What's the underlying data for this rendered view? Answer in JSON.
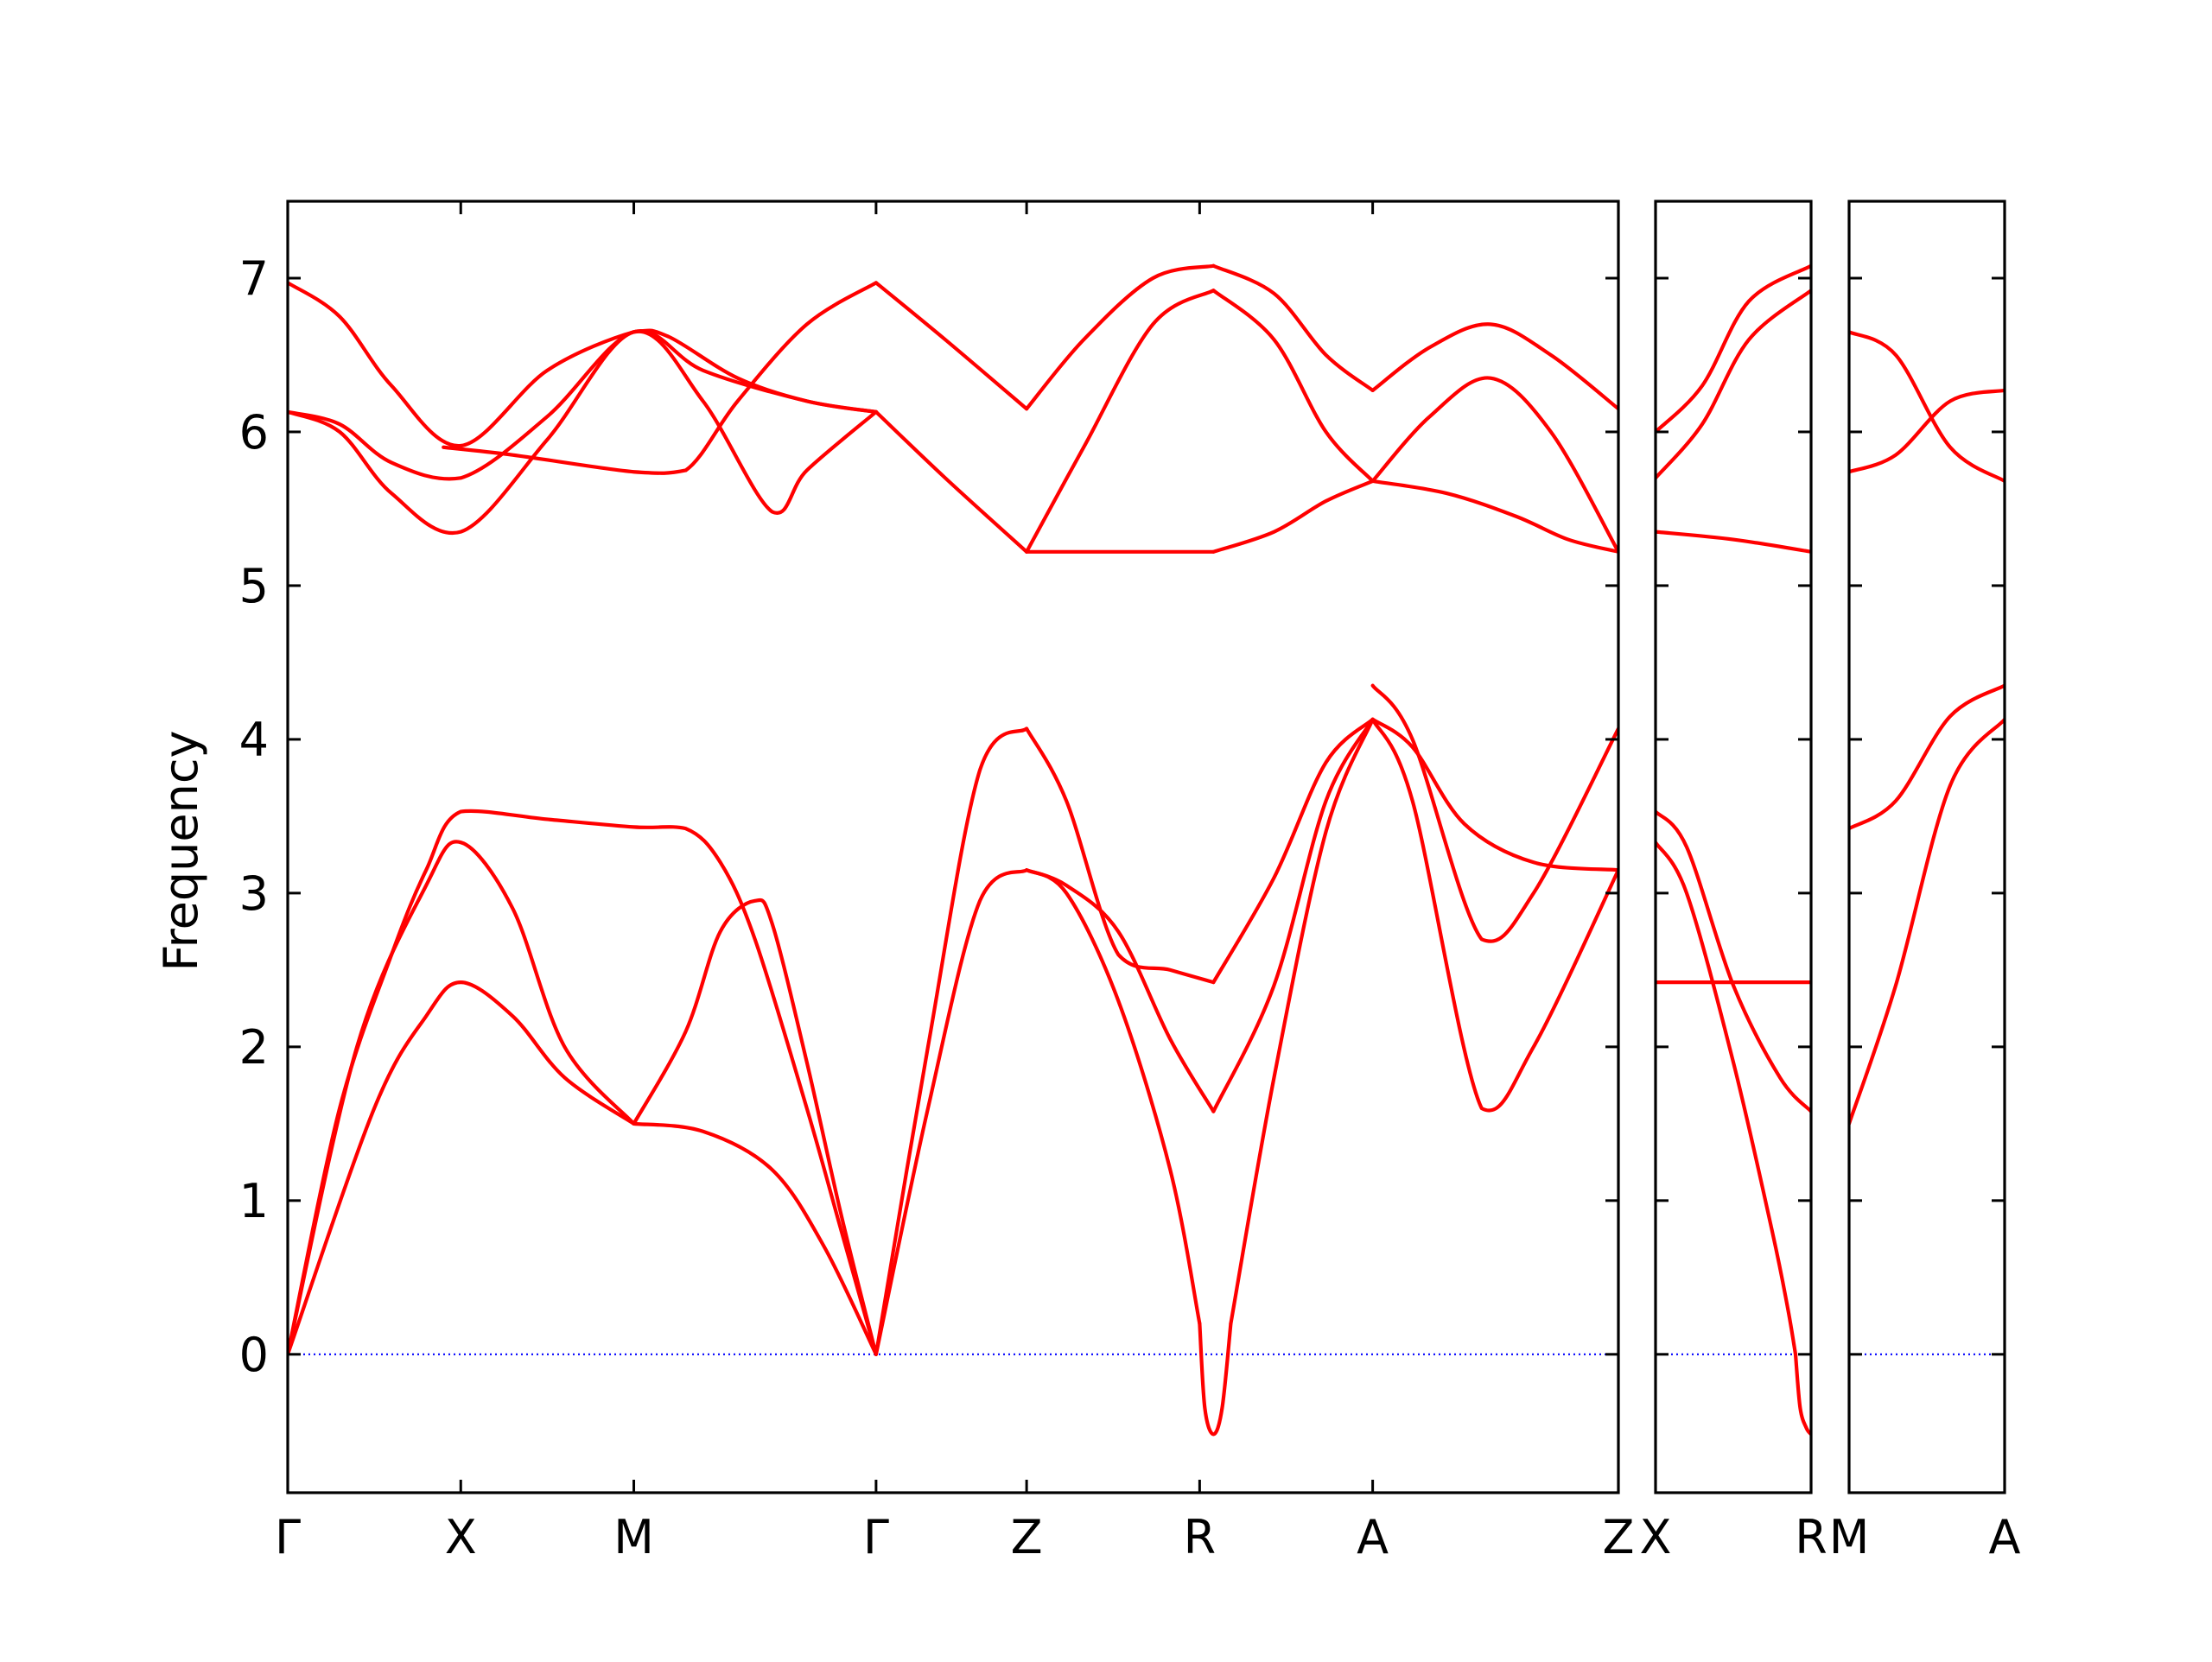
{
  "chart_data": {
    "type": "line",
    "title": "",
    "xlabel": "",
    "ylabel": "Frequency",
    "ylim": [
      -0.9,
      7.5
    ],
    "yticks": [
      0,
      1,
      2,
      3,
      4,
      5,
      6,
      7
    ],
    "grid": false,
    "legend": "none",
    "band_color": "#ff0000",
    "zero_line_color": "#0000ff",
    "panels": [
      {
        "name": "path-gamma-x-m-gamma-z-r-a-z",
        "segment_lengths": [
          1,
          1,
          1.4,
          0.87,
          1,
          1,
          1.42
        ],
        "labels": [
          "Γ",
          "X",
          "M",
          "Γ",
          "Z",
          "R",
          "A",
          "Z"
        ],
        "end_label": "",
        "series": [
          {
            "x": [
              0,
              0.5,
              0.8,
              1.0,
              1.3,
              1.6,
              2.0
            ],
            "y": [
              0,
              1.6,
              2.2,
              2.42,
              2.2,
              1.8,
              1.5
            ]
          },
          {
            "x": [
              2.0,
              2.4,
              2.8,
              3.1,
              3.4
            ],
            "y": [
              1.5,
              1.45,
              1.2,
              0.7,
              0
            ]
          },
          {
            "x": [
              0,
              0.4,
              0.8,
              1.0,
              1.3,
              1.6,
              2.0
            ],
            "y": [
              0,
              2.0,
              3.05,
              3.33,
              2.9,
              2.0,
              1.5
            ]
          },
          {
            "x": [
              2.0,
              2.3,
              2.5,
              2.7,
              2.8,
              3.0,
              3.2,
              3.4
            ],
            "y": [
              1.5,
              2.1,
              2.75,
              2.95,
              2.8,
              1.9,
              0.9,
              0
            ]
          },
          {
            "x": [
              0,
              0.3,
              0.6,
              0.8,
              1.0,
              1.5,
              2.0,
              2.3,
              2.5,
              2.7,
              3.0,
              3.2,
              3.4
            ],
            "y": [
              0,
              1.6,
              2.6,
              3.15,
              3.53,
              3.48,
              3.43,
              3.42,
              3.2,
              2.7,
              1.6,
              0.8,
              0
            ]
          },
          {
            "x": [
              3.4,
              3.7,
              4.0,
              4.27
            ],
            "y": [
              0,
              1.6,
              2.95,
              3.15
            ]
          },
          {
            "x": [
              3.4,
              3.7,
              4.0,
              4.27
            ],
            "y": [
              0,
              2.0,
              3.8,
              4.07
            ]
          },
          {
            "x": [
              4.27,
              4.5,
              4.8,
              5.1,
              5.27
            ],
            "y": [
              3.15,
              3.0,
              2.3,
              1.2,
              0.2
            ]
          },
          {
            "x": [
              5.27,
              5.3,
              5.35,
              5.4,
              5.45
            ],
            "y": [
              0.2,
              -0.35,
              -0.52,
              -0.35,
              0.2
            ]
          },
          {
            "x": [
              5.45,
              5.7,
              6.0,
              6.27
            ],
            "y": [
              0.2,
              1.8,
              3.4,
              4.13
            ]
          },
          {
            "x": [
              4.27,
              4.5,
              4.8,
              5.1,
              5.35
            ],
            "y": [
              3.15,
              3.05,
              2.75,
              2.05,
              1.58
            ]
          },
          {
            "x": [
              5.35,
              5.7,
              6.0,
              6.27
            ],
            "y": [
              1.58,
              2.4,
              3.6,
              4.13
            ]
          },
          {
            "x": [
              4.27,
              4.5,
              4.8,
              5.1,
              5.35
            ],
            "y": [
              4.07,
              3.6,
              2.6,
              2.5,
              2.42
            ]
          },
          {
            "x": [
              5.35,
              5.7,
              6.0,
              6.27
            ],
            "y": [
              2.42,
              3.1,
              3.85,
              4.13
            ]
          },
          {
            "x": [
              6.27,
              6.5,
              6.8,
              7.2,
              7.69
            ],
            "y": [
              4.13,
              3.95,
              3.45,
              3.2,
              3.15
            ]
          },
          {
            "x": [
              6.27,
              6.5,
              6.9,
              7.2,
              7.69
            ],
            "y": [
              4.13,
              3.6,
              1.6,
              2.0,
              3.15
            ]
          },
          {
            "x": [
              6.27,
              6.5,
              6.9,
              7.2,
              7.69
            ],
            "y": [
              4.35,
              4.0,
              2.7,
              3.0,
              4.07
            ]
          },
          {
            "x": [
              0,
              0.3,
              0.6,
              1.0,
              1.5,
              2.0,
              2.2,
              2.6,
              3.0,
              3.4
            ],
            "y": [
              6.97,
              6.75,
              6.3,
              5.91,
              6.4,
              6.65,
              6.62,
              6.35,
              6.2,
              6.13
            ]
          },
          {
            "x": [
              0,
              0.3,
              0.6,
              1.0,
              1.5,
              2.0,
              2.4,
              3.0,
              3.4
            ],
            "y": [
              6.13,
              6.05,
              5.8,
              5.7,
              6.1,
              6.65,
              6.4,
              6.2,
              6.13
            ]
          },
          {
            "x": [
              0,
              0.3,
              0.6,
              1.0,
              1.5,
              2.0,
              2.4,
              2.8,
              3.0,
              3.4
            ],
            "y": [
              6.13,
              6.0,
              5.6,
              5.35,
              5.95,
              6.65,
              6.2,
              5.48,
              5.75,
              6.13
            ]
          },
          {
            "x": [
              0.9,
              1.3,
              2.0,
              2.3,
              2.6,
              3.0,
              3.4
            ],
            "y": [
              5.9,
              5.85,
              5.74,
              5.75,
              6.2,
              6.7,
              6.97
            ]
          },
          {
            "x": [
              3.4,
              3.8,
              4.27
            ],
            "y": [
              6.97,
              6.6,
              6.15
            ]
          },
          {
            "x": [
              3.4,
              3.8,
              4.27
            ],
            "y": [
              6.13,
              5.7,
              5.22
            ]
          },
          {
            "x": [
              4.27,
              4.6,
              5.0,
              5.35
            ],
            "y": [
              6.15,
              6.6,
              7.0,
              7.08
            ]
          },
          {
            "x": [
              5.35,
              5.7,
              6.0,
              6.27
            ],
            "y": [
              7.08,
              6.9,
              6.5,
              6.27
            ]
          },
          {
            "x": [
              4.27,
              4.6,
              5.0,
              5.35
            ],
            "y": [
              5.22,
              5.9,
              6.7,
              6.92
            ]
          },
          {
            "x": [
              5.35,
              5.7,
              6.0,
              6.27
            ],
            "y": [
              6.92,
              6.6,
              6.0,
              5.68
            ]
          },
          {
            "x": [
              4.27,
              5.35
            ],
            "y": [
              5.22,
              5.22
            ]
          },
          {
            "x": [
              5.35,
              5.7,
              6.0,
              6.27
            ],
            "y": [
              5.22,
              5.35,
              5.55,
              5.68
            ]
          },
          {
            "x": [
              6.27,
              6.6,
              6.95,
              7.3,
              7.69
            ],
            "y": [
              6.27,
              6.55,
              6.7,
              6.5,
              6.15
            ]
          },
          {
            "x": [
              6.27,
              6.6,
              6.95,
              7.3,
              7.69
            ],
            "y": [
              5.68,
              6.1,
              6.35,
              6.0,
              5.22
            ]
          },
          {
            "x": [
              6.27,
              6.7,
              7.1,
              7.4,
              7.69
            ],
            "y": [
              5.68,
              5.6,
              5.45,
              5.3,
              5.22
            ]
          }
        ]
      },
      {
        "name": "path-x-r",
        "segment_lengths": [
          1
        ],
        "labels": [
          "X"
        ],
        "end_label": "R",
        "series": [
          {
            "x": [
              0,
              0.3,
              0.6,
              1.0
            ],
            "y": [
              6.0,
              6.3,
              6.85,
              7.08
            ]
          },
          {
            "x": [
              0,
              0.3,
              0.6,
              1.0
            ],
            "y": [
              5.7,
              6.05,
              6.6,
              6.92
            ]
          },
          {
            "x": [
              0,
              0.5,
              1.0
            ],
            "y": [
              5.35,
              5.3,
              5.22
            ]
          },
          {
            "x": [
              0,
              1.0
            ],
            "y": [
              2.42,
              2.42
            ]
          },
          {
            "x": [
              0,
              0.2,
              0.5,
              0.8,
              1.0
            ],
            "y": [
              3.53,
              3.3,
              2.4,
              1.8,
              1.58
            ]
          },
          {
            "x": [
              0,
              0.2,
              0.5,
              0.75,
              0.85,
              0.9
            ],
            "y": [
              3.33,
              3.0,
              1.9,
              0.8,
              0.3,
              0.0
            ]
          },
          {
            "x": [
              0.9,
              0.93,
              0.97,
              1.0
            ],
            "y": [
              0.0,
              -0.35,
              -0.48,
              -0.52
            ]
          }
        ]
      },
      {
        "name": "path-m-a",
        "segment_lengths": [
          1
        ],
        "labels": [
          "M"
        ],
        "end_label": "A",
        "series": [
          {
            "x": [
              0,
              0.3,
              0.65,
              1.0
            ],
            "y": [
              6.65,
              6.5,
              5.9,
              5.68
            ]
          },
          {
            "x": [
              0,
              0.3,
              0.65,
              1.0
            ],
            "y": [
              5.74,
              5.85,
              6.2,
              6.27
            ]
          },
          {
            "x": [
              0,
              0.3,
              0.65,
              1.0
            ],
            "y": [
              3.42,
              3.6,
              4.15,
              4.35
            ]
          },
          {
            "x": [
              0,
              0.3,
              0.65,
              1.0
            ],
            "y": [
              1.5,
              2.4,
              3.7,
              4.13
            ]
          }
        ]
      }
    ]
  }
}
